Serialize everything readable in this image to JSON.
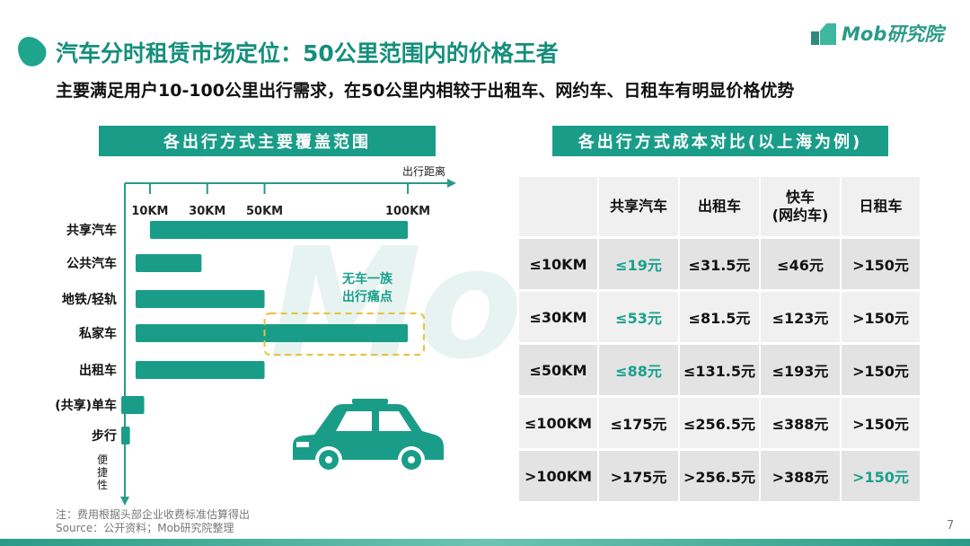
{
  "header": {
    "title": "汽车分时租赁市场定位：50公里范围内的价格王者",
    "subtitle": "主要满足用户10-100公里出行需求，在50公里内相较于出租车、网约车、日租车有明显价格优势",
    "logo_text": "Mob研究院",
    "watermark": "Mob"
  },
  "left_section": {
    "header": "各出行方式主要覆盖范围"
  },
  "right_section": {
    "header": "各出行方式成本对比(以上海为例)"
  },
  "chart_data": {
    "type": "bar",
    "orientation": "horizontal",
    "x_axis_label": "出行距离",
    "y_axis_label": "便捷性",
    "x_ticks": [
      {
        "label": "10KM",
        "value": 10
      },
      {
        "label": "30KM",
        "value": 30
      },
      {
        "label": "50KM",
        "value": 50
      },
      {
        "label": "100KM",
        "value": 100
      }
    ],
    "categories": [
      "共享汽车",
      "公共汽车",
      "地铁/轻轨",
      "私家车",
      "出租车",
      "(共享)单车",
      "步行"
    ],
    "ranges": [
      {
        "category": "共享汽车",
        "start": 10,
        "end": 100
      },
      {
        "category": "公共汽车",
        "start": 5,
        "end": 28
      },
      {
        "category": "地铁/轻轨",
        "start": 5,
        "end": 50
      },
      {
        "category": "私家车",
        "start": 5,
        "end": 100
      },
      {
        "category": "出租车",
        "start": 5,
        "end": 50
      },
      {
        "category": "(共享)单车",
        "start": 0,
        "end": 8
      },
      {
        "category": "步行",
        "start": 0,
        "end": 3
      }
    ],
    "annotation": {
      "lines": [
        "无车一族",
        "出行痛点"
      ],
      "range_start": 50,
      "range_end": 100,
      "category": "私家车"
    },
    "colors": {
      "bar": "#1a9d88",
      "axis": "#2a9b88",
      "annotation_text": "#1aa08c",
      "annotation_box": "#e8c23a"
    }
  },
  "cost_table": {
    "headers": [
      "",
      "共享汽车",
      "出租车",
      [
        "快车",
        "(网约车)"
      ],
      "日租车"
    ],
    "rows": [
      {
        "range": "≤10KM",
        "values": [
          "≤19元",
          "≤31.5元",
          "≤46元",
          ">150元"
        ],
        "highlight": [
          0
        ]
      },
      {
        "range": "≤30KM",
        "values": [
          "≤53元",
          "≤81.5元",
          "≤123元",
          ">150元"
        ],
        "highlight": [
          0
        ]
      },
      {
        "range": "≤50KM",
        "values": [
          "≤88元",
          "≤131.5元",
          "≤193元",
          ">150元"
        ],
        "highlight": [
          0
        ]
      },
      {
        "range": "≤100KM",
        "values": [
          "≤175元",
          "≤256.5元",
          "≤388元",
          ">150元"
        ],
        "highlight": []
      },
      {
        "range": ">100KM",
        "values": [
          ">175元",
          ">256.5元",
          ">388元",
          ">150元"
        ],
        "highlight": [
          3
        ]
      }
    ],
    "highlight_color": "#1aa08c"
  },
  "footer": {
    "note": "注：费用根据头部企业收费标准估算得出",
    "source": "Source：公开资料；Mob研究院整理",
    "page_number": "7"
  }
}
